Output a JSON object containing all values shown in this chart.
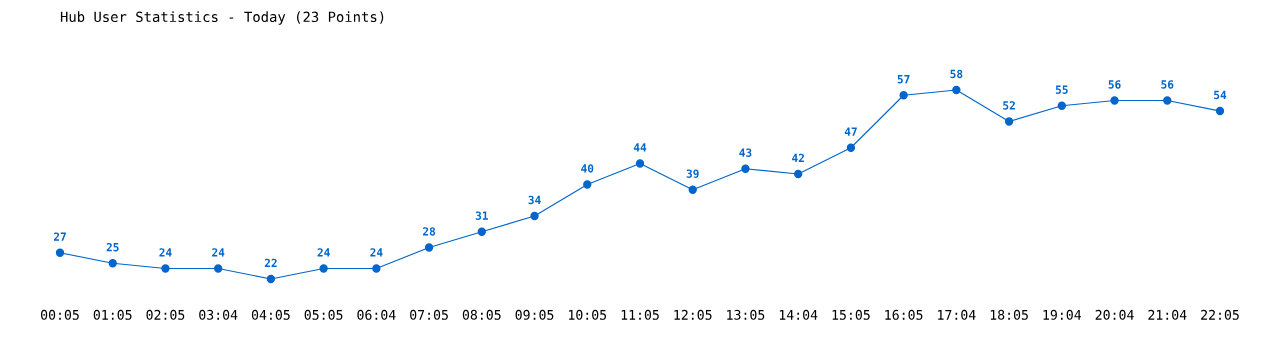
{
  "chart_data": {
    "type": "line",
    "title": "Hub User Statistics - Today (23 Points)",
    "categories": [
      "00:05",
      "01:05",
      "02:05",
      "03:04",
      "04:05",
      "05:05",
      "06:04",
      "07:05",
      "08:05",
      "09:05",
      "10:05",
      "11:05",
      "12:05",
      "13:05",
      "14:04",
      "15:05",
      "16:05",
      "17:04",
      "18:05",
      "19:04",
      "20:04",
      "21:04",
      "22:05"
    ],
    "series": [
      {
        "color": "#0066cc",
        "values": [
          27,
          25,
          24,
          24,
          22,
          24,
          24,
          28,
          31,
          34,
          40,
          44,
          39,
          43,
          42,
          47,
          57,
          58,
          52,
          55,
          56,
          56,
          54
        ]
      }
    ],
    "data_labels": true,
    "marker": "circle",
    "grid": false,
    "legend": false,
    "tick_labels": "x"
  }
}
